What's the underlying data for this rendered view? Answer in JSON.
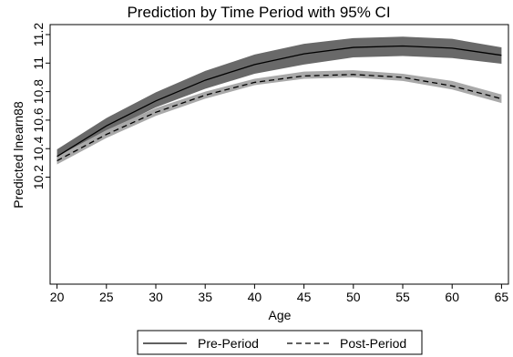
{
  "chart_data": {
    "type": "line",
    "title": "Prediction by Time Period with 95% CI",
    "xlabel": "Age",
    "ylabel": "Predicted lnearn88",
    "xlim": [
      19.3,
      65.7
    ],
    "ylim": [
      9.45,
      11.27
    ],
    "x_ticks": [
      20,
      25,
      30,
      35,
      40,
      45,
      50,
      55,
      60,
      65
    ],
    "y_ticks": [
      10.2,
      10.4,
      10.6,
      10.8,
      11,
      11.2
    ],
    "x": [
      20,
      25,
      30,
      35,
      40,
      45,
      50,
      55,
      60,
      65
    ],
    "grid": false,
    "legend_position": "bottom",
    "series": [
      {
        "name": "Pre-Period",
        "line_style": "solid",
        "band_color": "#696969",
        "values": [
          10.345,
          10.56,
          10.735,
          10.88,
          10.99,
          11.065,
          11.11,
          11.12,
          11.105,
          11.055
        ],
        "lower": [
          10.3,
          10.52,
          10.69,
          10.82,
          10.925,
          10.99,
          11.04,
          11.05,
          11.035,
          10.995
        ],
        "upper": [
          10.395,
          10.615,
          10.795,
          10.945,
          11.06,
          11.135,
          11.175,
          11.185,
          11.17,
          11.11
        ]
      },
      {
        "name": "Post-Period",
        "line_style": "dashed",
        "band_color": "#a9a9a9",
        "values": [
          10.315,
          10.5,
          10.655,
          10.775,
          10.865,
          10.91,
          10.92,
          10.9,
          10.84,
          10.75
        ],
        "lower": [
          10.29,
          10.475,
          10.63,
          10.75,
          10.845,
          10.89,
          10.9,
          10.875,
          10.815,
          10.72
        ],
        "upper": [
          10.345,
          10.53,
          10.685,
          10.8,
          10.89,
          10.94,
          10.95,
          10.925,
          10.875,
          10.78
        ]
      }
    ]
  }
}
